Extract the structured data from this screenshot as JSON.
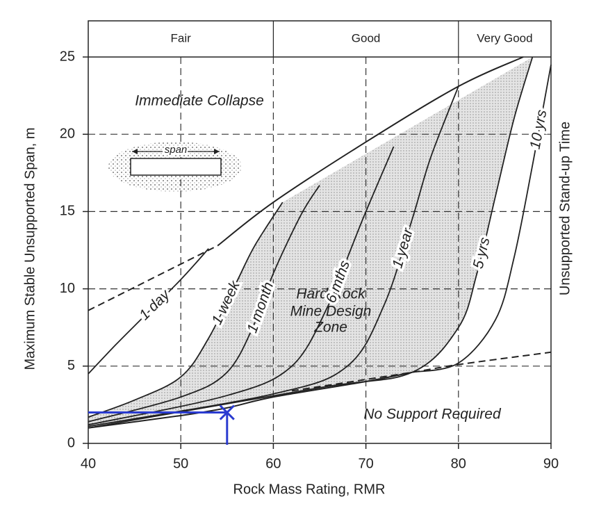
{
  "chart_data": {
    "type": "line",
    "title": null,
    "x_label": "Rock Mass Rating, RMR",
    "y_label": "Maximum Stable Unsupported Span, m",
    "y2_label": "Unsupported Stand-up Time",
    "xlim": [
      40,
      90
    ],
    "ylim": [
      0,
      25
    ],
    "xticks": [
      40,
      50,
      60,
      70,
      80,
      90
    ],
    "yticks": [
      0,
      5,
      10,
      15,
      20,
      25
    ],
    "grid": true,
    "rating_classes": [
      {
        "label": "Fair",
        "from": 40,
        "to": 60
      },
      {
        "label": "Good",
        "from": 60,
        "to": 80
      },
      {
        "label": "Very Good",
        "from": 80,
        "to": 90
      }
    ],
    "series": [
      {
        "name": "1 day",
        "color": "#222222",
        "x": [
          40,
          43,
          46,
          50,
          53
        ],
        "values": [
          4.5,
          6.4,
          8.2,
          10.6,
          12.6
        ]
      },
      {
        "name": "1 week",
        "color": "#222222",
        "x": [
          40,
          45,
          50,
          53,
          56,
          58,
          61
        ],
        "values": [
          1.7,
          2.8,
          4.3,
          6.8,
          10.4,
          12.8,
          15.6
        ]
      },
      {
        "name": "1 month",
        "color": "#222222",
        "x": [
          40,
          50,
          55,
          58,
          60,
          63,
          65
        ],
        "values": [
          1.4,
          3.0,
          4.6,
          7.8,
          11.0,
          14.8,
          16.7
        ]
      },
      {
        "name": "6 mths",
        "color": "#222222",
        "x": [
          40,
          55,
          62,
          66,
          68,
          70,
          73
        ],
        "values": [
          1.2,
          3.1,
          5.0,
          9.0,
          12.0,
          15.0,
          19.2
        ]
      },
      {
        "name": "1 year",
        "color": "#222222",
        "x": [
          40,
          60,
          68,
          72,
          75,
          77,
          80
        ],
        "values": [
          1.1,
          3.2,
          5.0,
          9.0,
          14.5,
          18.5,
          23.1
        ]
      },
      {
        "name": "5 yrs",
        "color": "#222222",
        "x": [
          40,
          65,
          75,
          80,
          82,
          84,
          86,
          88
        ],
        "values": [
          1.0,
          3.6,
          4.6,
          7.5,
          11.0,
          16.0,
          21.0,
          25.0
        ]
      },
      {
        "name": "10 yrs",
        "color": "#222222",
        "x": [
          75,
          80,
          84,
          86,
          88,
          90
        ],
        "values": [
          4.6,
          5.2,
          8.0,
          12.0,
          18.0,
          24.5
        ]
      }
    ],
    "boundaries": [
      {
        "style": "dashed",
        "x": [
          40,
          54
        ],
        "values": [
          8.6,
          12.8
        ]
      },
      {
        "style": "solid",
        "x": [
          54,
          60,
          70,
          80,
          87
        ],
        "values": [
          12.8,
          15.6,
          19.5,
          23.1,
          25
        ]
      },
      {
        "style": "solid",
        "x": [
          40,
          50,
          55,
          60,
          70,
          75
        ],
        "values": [
          1.0,
          1.8,
          2.3,
          3.0,
          4.0,
          4.6
        ]
      },
      {
        "style": "dashed",
        "x": [
          62,
          75,
          80,
          90
        ],
        "values": [
          3.4,
          4.6,
          5.1,
          5.9
        ]
      }
    ],
    "shaded_zone": [
      1,
      5
    ],
    "marker": {
      "x": 55,
      "y": 2,
      "color": "#2a3bd0"
    },
    "annotations": {
      "collapse": "Immediate Collapse",
      "span": "span",
      "zone": [
        "Hard Rock",
        "Mine Design",
        "Zone"
      ],
      "no_support": "No Support Required"
    }
  }
}
